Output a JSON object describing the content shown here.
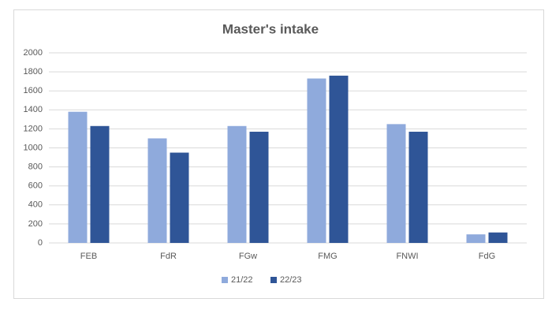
{
  "chart_data": {
    "type": "bar",
    "title": "Master's intake",
    "categories": [
      "FEB",
      "FdR",
      "FGw",
      "FMG",
      "FNWI",
      "FdG"
    ],
    "series": [
      {
        "name": "21/22",
        "color": "#8faadc",
        "values": [
          1380,
          1100,
          1230,
          1730,
          1250,
          90
        ]
      },
      {
        "name": "22/23",
        "color": "#2f5597",
        "values": [
          1230,
          950,
          1170,
          1760,
          1170,
          110
        ]
      }
    ],
    "ylim": [
      0,
      2000
    ],
    "yticks": [
      0,
      200,
      400,
      600,
      800,
      1000,
      1200,
      1400,
      1600,
      1800,
      2000
    ],
    "grid": true,
    "legend": "bottom"
  }
}
